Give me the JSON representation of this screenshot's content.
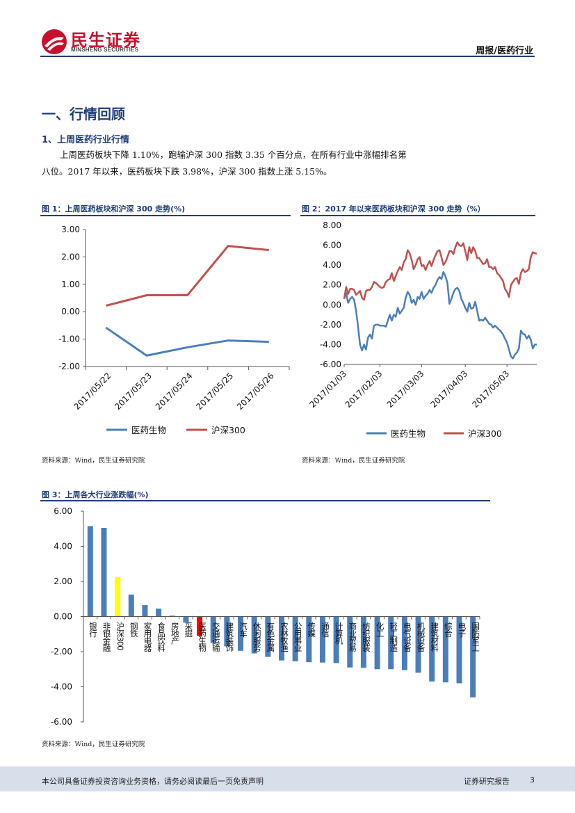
{
  "header": {
    "logo_cn": "民生证券",
    "logo_en": "MINSHENG SECURITIES",
    "report_type": "周报/医药行业"
  },
  "section": {
    "title": "一、行情回顾",
    "subtitle": "1、上周医药行业行情",
    "paragraph_line1": "上周医药板块下降 1.10%，跑输沪深 300 指数 3.35 个百分点，在所有行业中涨幅排名第",
    "paragraph_line2": "八位。2017 年以来，医药板块下跌 3.98%，沪深 300 指数上涨 5.15%。"
  },
  "figures": {
    "fig1_title": "图 1：上周医药板块和沪深 300 走势(%)",
    "fig2_title": "图 2：2017 年以来医药板块和沪深 300 走势（%）",
    "fig3_title": "图 3：上周各大行业涨跌幅(%)",
    "source1": "资料来源：Wind，民生证券研究院",
    "source2": "资料来源：Wind，民生证券研究院",
    "source3": "资料来源：Wind，民生证券研究院"
  },
  "colors": {
    "blue": "#4a7ebb",
    "red": "#c0504d",
    "yellow": "#ffff00",
    "highlight_red": "#ff0000"
  },
  "chart_data": [
    {
      "id": "fig1",
      "type": "line",
      "categories": [
        "2017/05/22",
        "2017/05/23",
        "2017/05/24",
        "2017/05/25",
        "2017/05/26"
      ],
      "series": [
        {
          "name": "医药生物",
          "color": "#4a7ebb",
          "values": [
            -0.58,
            -1.6,
            -1.3,
            -1.05,
            -1.1
          ]
        },
        {
          "name": "沪深300",
          "color": "#c0504d",
          "values": [
            0.22,
            0.6,
            0.6,
            2.4,
            2.25
          ]
        }
      ],
      "ylim": [
        -2,
        3
      ],
      "yticks": [
        -2,
        -1,
        0,
        1,
        2,
        3
      ],
      "ytick_labels": [
        "-2.00",
        "-1.00",
        "0.00",
        "1.00",
        "2.00",
        "3.00"
      ],
      "legend": [
        "医药生物",
        "沪深300"
      ]
    },
    {
      "id": "fig2",
      "type": "line",
      "xticks": [
        "2017/01/03",
        "2017/02/03",
        "2017/03/03",
        "2017/04/03",
        "2017/05/03"
      ],
      "xtick_index": [
        0,
        18,
        39,
        61,
        82
      ],
      "n_points": 98,
      "series": [
        {
          "name": "医药生物",
          "color": "#4a7ebb",
          "values": [
            0.6,
            1.2,
            0.2,
            0.6,
            0.8,
            0.5,
            -0.6,
            -2.2,
            -4.0,
            -4.6,
            -4.0,
            -4.5,
            -3.3,
            -3.0,
            -3.4,
            -2.1,
            -2.0,
            -2.0,
            -2.1,
            -2.1,
            -2.1,
            -2.2,
            -1.6,
            -1.0,
            -1.6,
            -1.0,
            -1.2,
            -0.3,
            -0.9,
            -0.6,
            -0.3,
            0.7,
            1.3,
            1.0,
            0.2,
            0.5,
            0.0,
            0.8,
            0.6,
            1.3,
            0.6,
            0.9,
            1.1,
            1.5,
            1.2,
            1.7,
            2.0,
            2.5,
            2.8,
            2.6,
            3.3,
            2.9,
            2.2,
            0.1,
            0.6,
            1.2,
            1.6,
            1.7,
            1.4,
            0.6,
            0.2,
            -0.3,
            -0.7,
            0.2,
            -0.4,
            -0.3,
            0.3,
            -0.6,
            -1.6,
            -1.5,
            -1.6,
            -1.3,
            -1.6,
            -1.9,
            -2.0,
            -2.3,
            -2.1,
            -2.3,
            -2.5,
            -2.7,
            -3.0,
            -3.4,
            -3.8,
            -4.5,
            -5.2,
            -5.4,
            -5.0,
            -4.8,
            -4.4,
            -2.6,
            -2.9,
            -3.0,
            -3.4,
            -3.1,
            -3.5,
            -4.4,
            -4.0,
            -4.0
          ]
        },
        {
          "name": "沪深300",
          "color": "#c0504d",
          "values": [
            0.6,
            1.8,
            1.1,
            1.6,
            1.6,
            1.5,
            1.0,
            1.2,
            1.4,
            0.7,
            0.5,
            1.4,
            1.5,
            1.5,
            1.8,
            2.3,
            2.2,
            2.0,
            1.8,
            1.7,
            1.8,
            2.3,
            2.5,
            2.6,
            3.2,
            2.4,
            2.9,
            3.4,
            3.8,
            3.5,
            4.3,
            4.6,
            5.5,
            5.2,
            4.5,
            3.6,
            4.0,
            4.6,
            4.8,
            3.9,
            4.0,
            3.5,
            4.0,
            4.4,
            3.9,
            4.5,
            5.0,
            5.4,
            5.5,
            4.8,
            4.0,
            4.3,
            4.8,
            5.4,
            5.4,
            5.1,
            5.8,
            6.3,
            6.0,
            5.9,
            6.2,
            5.4,
            4.5,
            5.8,
            5.2,
            5.8,
            5.4,
            4.7,
            4.7,
            4.4,
            4.1,
            4.2,
            4.6,
            3.8,
            3.8,
            3.6,
            3.8,
            3.2,
            3.0,
            2.7,
            2.4,
            1.6,
            1.3,
            0.8,
            2.0,
            2.3,
            2.6,
            2.7,
            2.1,
            3.2,
            3.6,
            3.3,
            3.4,
            3.6,
            4.8,
            5.3,
            5.2,
            5.15
          ]
        }
      ],
      "ylim": [
        -6,
        8
      ],
      "yticks": [
        -6,
        -4,
        -2,
        0,
        2,
        4,
        6,
        8
      ],
      "ytick_labels": [
        "-6.00",
        "-4.00",
        "-2.00",
        "0.00",
        "2.00",
        "4.00",
        "6.00",
        "8.00"
      ],
      "legend": [
        "医药生物",
        "沪深300"
      ]
    },
    {
      "id": "fig3",
      "type": "bar",
      "categories": [
        "银行",
        "非银金融",
        "沪深300",
        "钢铁",
        "家用电器",
        "食品饮料",
        "房地产",
        "采掘",
        "医药生物",
        "交通运输",
        "建筑装饰",
        "汽车",
        "休闲服务",
        "有色金属",
        "农林牧渔",
        "公用事业",
        "传媒",
        "通信",
        "计算机",
        "商业贸易",
        "纺织服装",
        "化工",
        "轻工制造",
        "电气设备",
        "机械设备",
        "建筑材料",
        "综合",
        "电子",
        "国防军工"
      ],
      "values": [
        5.15,
        5.05,
        2.25,
        1.25,
        0.65,
        0.45,
        0.05,
        -0.35,
        -1.1,
        -1.5,
        -1.7,
        -1.95,
        -2.1,
        -2.3,
        -2.5,
        -2.55,
        -2.6,
        -2.62,
        -2.65,
        -2.9,
        -2.92,
        -3.0,
        -3.0,
        -3.05,
        -3.2,
        -3.7,
        -3.75,
        -3.8,
        -4.6
      ],
      "bar_colors": [
        "#4a7ebb",
        "#4a7ebb",
        "#ffff00",
        "#4a7ebb",
        "#4a7ebb",
        "#4a7ebb",
        "#4a7ebb",
        "#4a7ebb",
        "#ff0000",
        "#4a7ebb",
        "#4a7ebb",
        "#4a7ebb",
        "#4a7ebb",
        "#4a7ebb",
        "#4a7ebb",
        "#4a7ebb",
        "#4a7ebb",
        "#4a7ebb",
        "#4a7ebb",
        "#4a7ebb",
        "#4a7ebb",
        "#4a7ebb",
        "#4a7ebb",
        "#4a7ebb",
        "#4a7ebb",
        "#4a7ebb",
        "#4a7ebb",
        "#4a7ebb",
        "#4a7ebb"
      ],
      "ylim": [
        -6,
        6
      ],
      "yticks": [
        -6,
        -4,
        -2,
        0,
        2,
        4,
        6
      ],
      "ytick_labels": [
        "-6.00",
        "-4.00",
        "-2.00",
        "0.00",
        "2.00",
        "4.00",
        "6.00"
      ]
    }
  ],
  "footer": {
    "disclaimer": "本公司具备证券投资咨询业务资格，请务必阅读最后一页免责声明",
    "report_label": "证券研究报告",
    "page_number": "3"
  }
}
